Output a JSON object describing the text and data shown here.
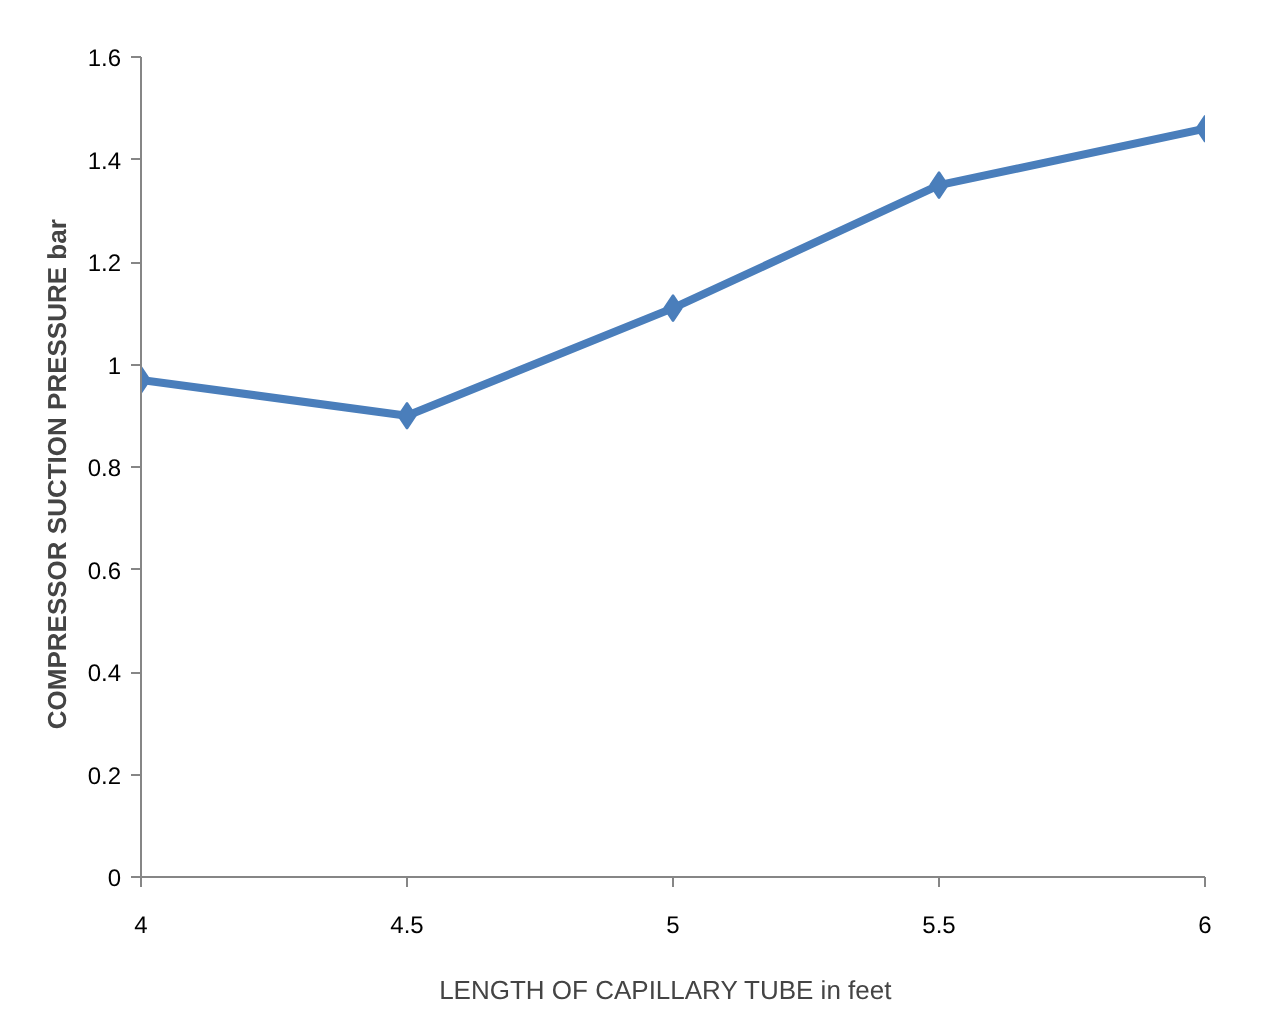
{
  "chart_data": {
    "type": "line",
    "xlabel": "LENGTH OF CAPILLARY TUBE  in  feet",
    "ylabel": "COMPRESSOR  SUCTION PRESSURE  bar",
    "x": [
      4,
      4.5,
      5,
      5.5,
      6
    ],
    "series": [
      {
        "color": "#4a7ebb",
        "values": [
          0.97,
          0.9,
          1.11,
          1.35,
          1.46
        ]
      }
    ],
    "xlim": [
      4,
      6
    ],
    "xticks": [
      4,
      4.5,
      5,
      5.5,
      6
    ],
    "ylim": [
      0,
      1.6
    ],
    "yticks": [
      0,
      0.2,
      0.4,
      0.6,
      0.8,
      1,
      1.2,
      1.4,
      1.6
    ],
    "grid": false,
    "marker": "diamond",
    "line_style": "solid"
  }
}
